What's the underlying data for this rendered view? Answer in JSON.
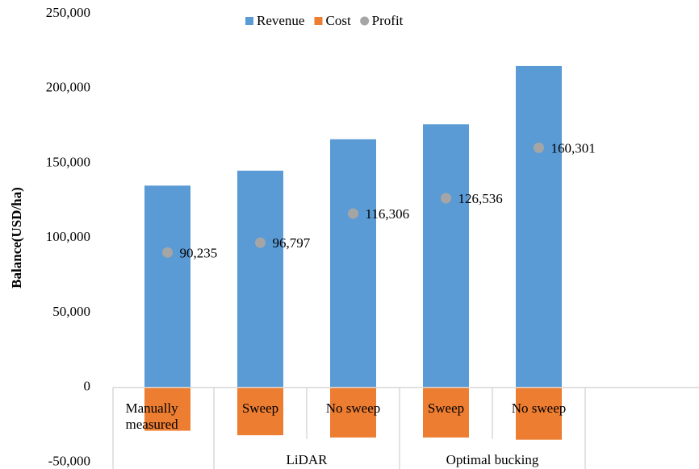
{
  "chart_data": {
    "type": "bar",
    "y_label": "Balance(USD/ha)",
    "categories": [
      "Manually measured",
      "Sweep",
      "No sweep",
      "Sweep",
      "No sweep"
    ],
    "groups": [
      {
        "name": "LiDAR",
        "start": 1,
        "count": 2
      },
      {
        "name": "Optimal bucking",
        "start": 3,
        "count": 2
      }
    ],
    "series": [
      {
        "name": "Revenue",
        "color": "#5b9bd5",
        "kind": "bar",
        "values": [
          135000,
          145000,
          166000,
          176000,
          215000
        ]
      },
      {
        "name": "Cost",
        "color": "#ed7d31",
        "kind": "bar",
        "values": [
          -29000,
          -32000,
          -33500,
          -33500,
          -35000
        ]
      },
      {
        "name": "Profit",
        "color": "#a5a5a5",
        "kind": "point",
        "values": [
          90235,
          96797,
          116306,
          126536,
          160301
        ],
        "value_labels": [
          "90,235",
          "96,797",
          "116,306",
          "126,536",
          "160,301"
        ]
      }
    ],
    "ylim": [
      -50000,
      250000
    ],
    "yticks": [
      {
        "value": -50000,
        "label": "-50,000"
      },
      0,
      {
        "value": 50000,
        "label": "50,000"
      },
      {
        "value": 100000,
        "label": "100,000"
      },
      {
        "value": 150000,
        "label": "150,000"
      },
      {
        "value": 200000,
        "label": "200,000"
      },
      {
        "value": 250000,
        "label": "250,000"
      }
    ],
    "legend": "top",
    "grid": false
  }
}
